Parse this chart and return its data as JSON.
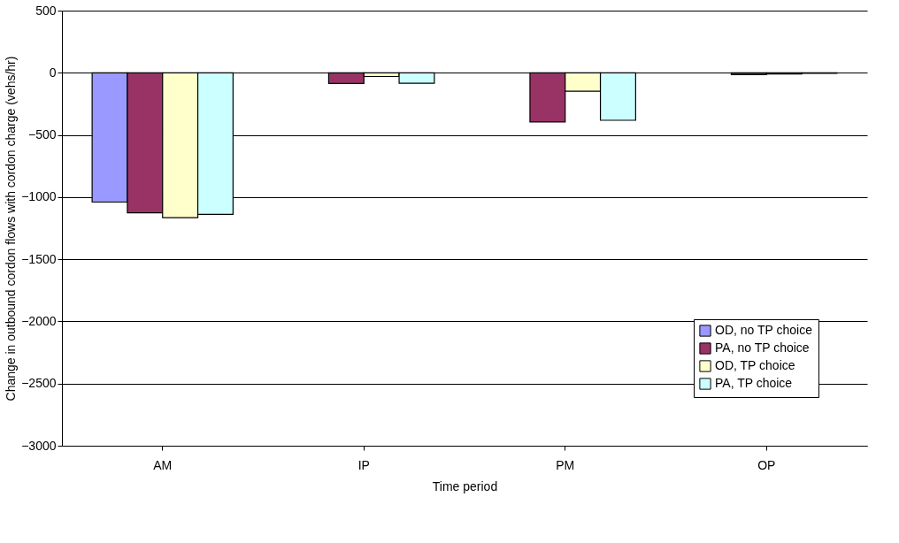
{
  "chart_data": {
    "type": "bar",
    "xlabel": "Time period",
    "ylabel": "Change in outbound cordon flows with cordon charge (vehs/hr)",
    "categories": [
      "AM",
      "IP",
      "PM",
      "OP"
    ],
    "series": [
      {
        "name": "OD, no TP choice",
        "color": "#9999ff",
        "values": [
          -1040,
          null,
          null,
          null
        ]
      },
      {
        "name": "PA, no TP choice",
        "color": "#993366",
        "values": [
          -1126,
          -86,
          -395,
          -15
        ]
      },
      {
        "name": "OD, TP choice",
        "color": "#ffffcc",
        "values": [
          -1166,
          -30,
          -148,
          -10
        ]
      },
      {
        "name": "PA, TP choice",
        "color": "#ccffff",
        "values": [
          -1139,
          -84,
          -382,
          -5
        ]
      }
    ],
    "ylim": [
      -3000,
      500
    ],
    "yticks": [
      -3000,
      -2500,
      -2000,
      -1500,
      -1000,
      -500,
      0,
      500
    ],
    "grid": "y",
    "legend": "bottom right"
  }
}
